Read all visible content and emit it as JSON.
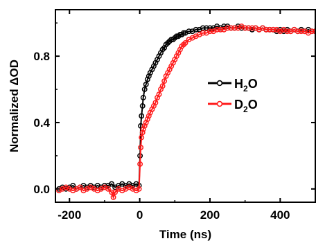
{
  "chart_data": {
    "type": "scatter",
    "xlabel": "Time (ns)",
    "ylabel": "Normalized ΔOD",
    "xlim": [
      -240,
      500
    ],
    "ylim": [
      -0.08,
      1.08
    ],
    "xticks": [
      -200,
      0,
      200,
      400
    ],
    "xtick_labels": [
      "-200",
      "0",
      "200",
      "400"
    ],
    "yticks": [
      0.0,
      0.4,
      0.8
    ],
    "ytick_labels": [
      "0.0",
      "0.4",
      "0.8"
    ],
    "grid": false,
    "legend_position": "center-right",
    "series": [
      {
        "name": "H2O",
        "label_main_1": "H",
        "label_sub": "2",
        "label_main_2": "O",
        "color": "#000000",
        "marker": "open-circle",
        "x": [
          -230,
          -220,
          -210,
          -200,
          -190,
          -180,
          -170,
          -160,
          -150,
          -140,
          -130,
          -120,
          -110,
          -100,
          -90,
          -80,
          -70,
          -60,
          -50,
          -40,
          -30,
          -20,
          -10,
          -2,
          1,
          3,
          5,
          8,
          10,
          14,
          18,
          22,
          26,
          30,
          35,
          40,
          45,
          50,
          55,
          60,
          65,
          70,
          75,
          80,
          85,
          90,
          95,
          100,
          105,
          110,
          115,
          120,
          125,
          130,
          140,
          150,
          160,
          170,
          180,
          190,
          200,
          210,
          220,
          230,
          240,
          250,
          260,
          270,
          280,
          290,
          300,
          310,
          320,
          330,
          340,
          350,
          360,
          370,
          380,
          390,
          400,
          410,
          420,
          430,
          440,
          450,
          460,
          470,
          480,
          490,
          500
        ],
        "y": [
          0.0,
          0.01,
          0.0,
          0.01,
          0.02,
          0.0,
          0.01,
          0.02,
          0.01,
          0.02,
          0.01,
          0.02,
          0.01,
          0.02,
          0.02,
          0.03,
          0.01,
          0.02,
          0.03,
          0.02,
          0.03,
          0.02,
          0.03,
          0.02,
          0.2,
          0.38,
          0.44,
          0.5,
          0.55,
          0.6,
          0.63,
          0.66,
          0.68,
          0.7,
          0.72,
          0.74,
          0.76,
          0.78,
          0.8,
          0.82,
          0.84,
          0.85,
          0.87,
          0.88,
          0.89,
          0.9,
          0.9,
          0.91,
          0.92,
          0.92,
          0.93,
          0.93,
          0.94,
          0.94,
          0.95,
          0.95,
          0.96,
          0.96,
          0.97,
          0.97,
          0.97,
          0.97,
          0.98,
          0.97,
          0.98,
          0.98,
          0.97,
          0.97,
          0.98,
          0.97,
          0.97,
          0.97,
          0.96,
          0.97,
          0.96,
          0.97,
          0.96,
          0.96,
          0.96,
          0.95,
          0.96,
          0.95,
          0.96,
          0.95,
          0.96,
          0.95,
          0.96,
          0.95,
          0.96,
          0.95,
          0.95
        ]
      },
      {
        "name": "D2O",
        "label_main_1": "D",
        "label_sub": "2",
        "label_main_2": "O",
        "color": "#ff1a1a",
        "marker": "open-circle",
        "x": [
          -230,
          -220,
          -210,
          -200,
          -190,
          -180,
          -170,
          -160,
          -150,
          -140,
          -130,
          -120,
          -110,
          -100,
          -90,
          -80,
          -75,
          -70,
          -60,
          -50,
          -40,
          -30,
          -20,
          -10,
          -2,
          1,
          3,
          5,
          8,
          10,
          14,
          18,
          22,
          26,
          30,
          35,
          40,
          45,
          50,
          55,
          60,
          65,
          70,
          75,
          80,
          85,
          90,
          95,
          100,
          105,
          110,
          115,
          120,
          125,
          130,
          140,
          150,
          160,
          170,
          180,
          190,
          200,
          210,
          220,
          230,
          240,
          250,
          260,
          270,
          280,
          290,
          300,
          310,
          320,
          330,
          340,
          350,
          360,
          370,
          380,
          390,
          400,
          410,
          420,
          430,
          440,
          450,
          460,
          470,
          480,
          490,
          500
        ],
        "y": [
          -0.01,
          0.0,
          0.01,
          0.0,
          -0.01,
          0.0,
          0.01,
          -0.01,
          0.0,
          0.01,
          0.0,
          -0.01,
          0.0,
          0.01,
          0.0,
          -0.02,
          -0.05,
          -0.02,
          0.0,
          -0.01,
          0.0,
          0.01,
          0.0,
          -0.01,
          0.0,
          0.15,
          0.25,
          0.31,
          0.34,
          0.36,
          0.38,
          0.4,
          0.42,
          0.44,
          0.46,
          0.48,
          0.5,
          0.52,
          0.55,
          0.57,
          0.6,
          0.62,
          0.65,
          0.68,
          0.7,
          0.72,
          0.74,
          0.76,
          0.78,
          0.8,
          0.82,
          0.84,
          0.86,
          0.87,
          0.88,
          0.9,
          0.91,
          0.92,
          0.93,
          0.94,
          0.94,
          0.95,
          0.95,
          0.96,
          0.96,
          0.96,
          0.97,
          0.97,
          0.97,
          0.97,
          0.98,
          0.97,
          0.97,
          0.97,
          0.97,
          0.96,
          0.97,
          0.96,
          0.96,
          0.96,
          0.96,
          0.95,
          0.96,
          0.95,
          0.95,
          0.96,
          0.95,
          0.95,
          0.95,
          0.94,
          0.95,
          0.95
        ]
      }
    ]
  }
}
